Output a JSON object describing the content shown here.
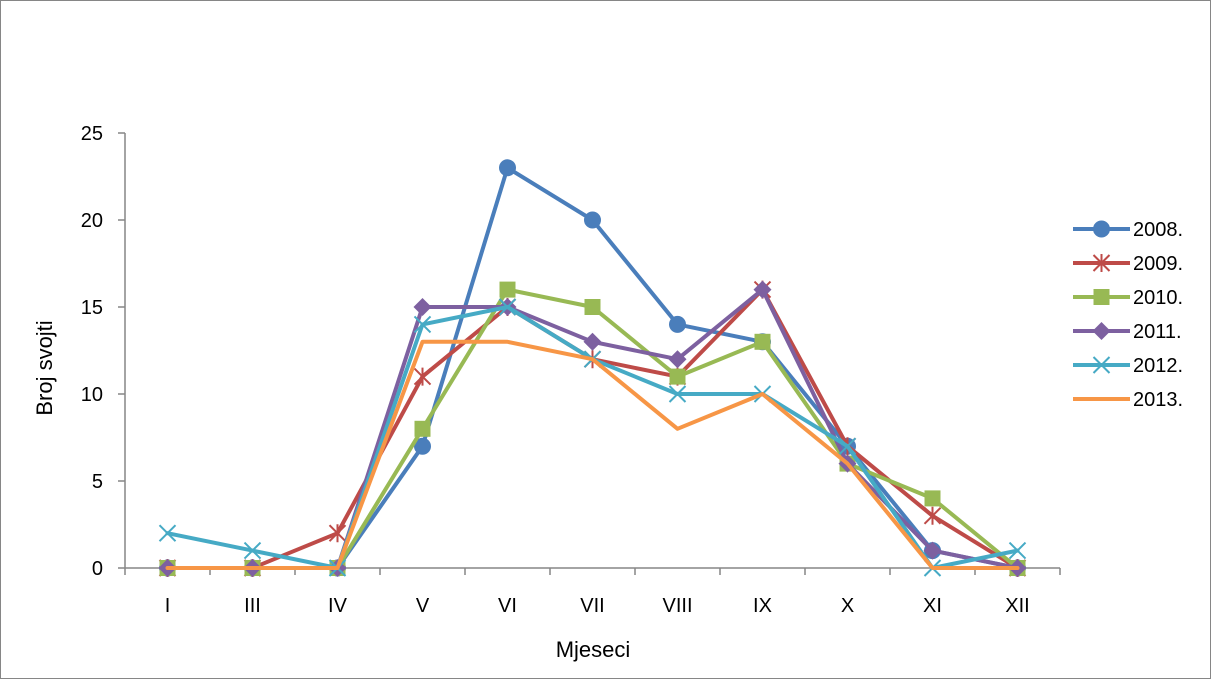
{
  "chart_data": {
    "type": "line",
    "title": "",
    "xlabel": "Mjeseci",
    "ylabel": "Broj svojti",
    "categories": [
      "I",
      "III",
      "IV",
      "V",
      "VI",
      "VII",
      "VIII",
      "IX",
      "X",
      "XI",
      "XII"
    ],
    "ylim": [
      0,
      25
    ],
    "yticks": [
      0,
      5,
      10,
      15,
      20,
      25
    ],
    "grid": false,
    "legend_position": "right",
    "series": [
      {
        "name": "2008.",
        "color": "#4A7EBB",
        "marker": "circle",
        "values": [
          0,
          0,
          0,
          7,
          23,
          20,
          14,
          13,
          7,
          1,
          0
        ]
      },
      {
        "name": "2009.",
        "color": "#BE4B48",
        "marker": "asterisk",
        "values": [
          0,
          0,
          2,
          11,
          15,
          12,
          11,
          16,
          7,
          3,
          0
        ]
      },
      {
        "name": "2010.",
        "color": "#98B954",
        "marker": "square",
        "values": [
          0,
          0,
          0,
          8,
          16,
          15,
          11,
          13,
          6,
          4,
          0
        ]
      },
      {
        "name": "2011.",
        "color": "#7D60A0",
        "marker": "diamond",
        "values": [
          0,
          0,
          0,
          15,
          15,
          13,
          12,
          16,
          6,
          1,
          0
        ]
      },
      {
        "name": "2012.",
        "color": "#46AAC5",
        "marker": "x",
        "values": [
          2,
          1,
          0,
          14,
          15,
          12,
          10,
          10,
          7,
          0,
          1
        ]
      },
      {
        "name": "2013.",
        "color": "#F79646",
        "marker": "none",
        "values": [
          0,
          0,
          0,
          13,
          13,
          12,
          8,
          10,
          6,
          0,
          0
        ]
      }
    ]
  }
}
